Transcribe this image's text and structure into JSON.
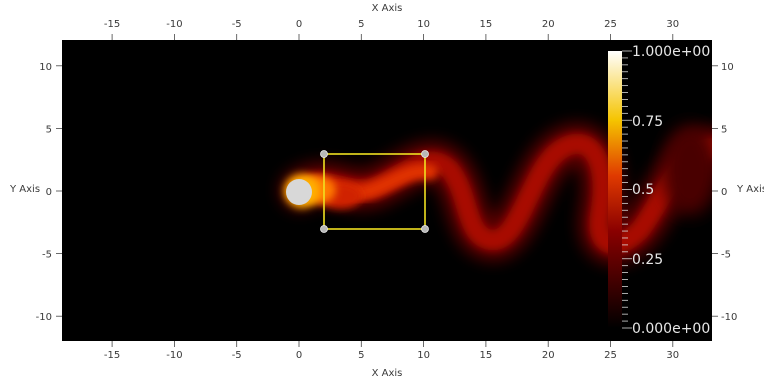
{
  "axes": {
    "x_title_top": "X Axis",
    "x_title_bottom": "X Axis",
    "y_title_left": "Y Axis",
    "y_title_right": "Y Axis",
    "x_ticks": [
      -15,
      -10,
      -5,
      0,
      5,
      10,
      15,
      20,
      25,
      30
    ],
    "y_ticks": [
      10,
      5,
      0,
      -5,
      -10
    ],
    "x_range": [
      -19,
      33
    ],
    "y_range": [
      -12,
      12
    ]
  },
  "colorbar": {
    "labels": [
      "1.000e+00",
      "0.75",
      "0.5",
      "0.25",
      "0.000e+00"
    ],
    "values": [
      1.0,
      0.75,
      0.5,
      0.25,
      0.0
    ],
    "colormap": "black-body (black-red-yellow-white)"
  },
  "selection_box": {
    "x": [
      2,
      10
    ],
    "y": [
      -3,
      3
    ],
    "color": "#f0e020"
  },
  "scene": {
    "background": "#000000",
    "cylinder": {
      "center": [
        0,
        0
      ],
      "radius": 1,
      "color": "#d6d6d6"
    },
    "field": "vortex street wake, scalar 0..1"
  }
}
